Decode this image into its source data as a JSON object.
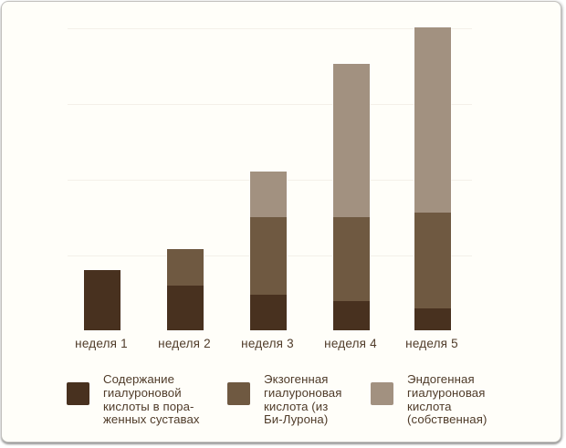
{
  "chart_data": {
    "type": "bar",
    "subtype": "stacked-vertical",
    "title": "",
    "xlabel": "",
    "ylabel": "",
    "categories": [
      "неделя 1",
      "неделя 2",
      "неделя 3",
      "неделя 4",
      "неделя 5"
    ],
    "series": [
      {
        "name": "Содержание гиалуроновой кислоты в пораженных суставах",
        "color": "#48311f",
        "values": [
          0.8,
          0.59,
          0.47,
          0.39,
          0.29
        ]
      },
      {
        "name": "Экзогенная гиалуроновая кислота (из Би-Лурона)",
        "color": "#6f5941",
        "values": [
          0,
          0.48,
          1.02,
          1.11,
          1.27
        ]
      },
      {
        "name": "Эндогенная гиалуроновая кислота (собственная)",
        "color": "#a29180",
        "values": [
          0,
          0,
          0.6,
          2.02,
          2.45
        ]
      }
    ],
    "ylim": [
      0,
      4
    ],
    "y_ticks_labeled": false,
    "gridlines": "horizontal, faint, 5 levels",
    "legend_position": "bottom"
  },
  "legend": {
    "items": [
      {
        "label": "Содержание\nгиалуроновой\nкислоты в пора-\nженных суставах",
        "color": "#48311f"
      },
      {
        "label": "Экзогенная\nгиалуроновая\nкислота (из\nБи-Лурона)",
        "color": "#6f5941"
      },
      {
        "label": "Эндогенная\nгиалуроновая\nкислота\n(собственная)",
        "color": "#a29180"
      }
    ]
  },
  "colors": {
    "background": "#fffef9",
    "frame_border": "#c2c0bd",
    "gridline": "#f4f0e9",
    "text": "#4f3b29",
    "series_dark": "#48311f",
    "series_medium": "#6f5941",
    "series_light": "#a29180"
  }
}
